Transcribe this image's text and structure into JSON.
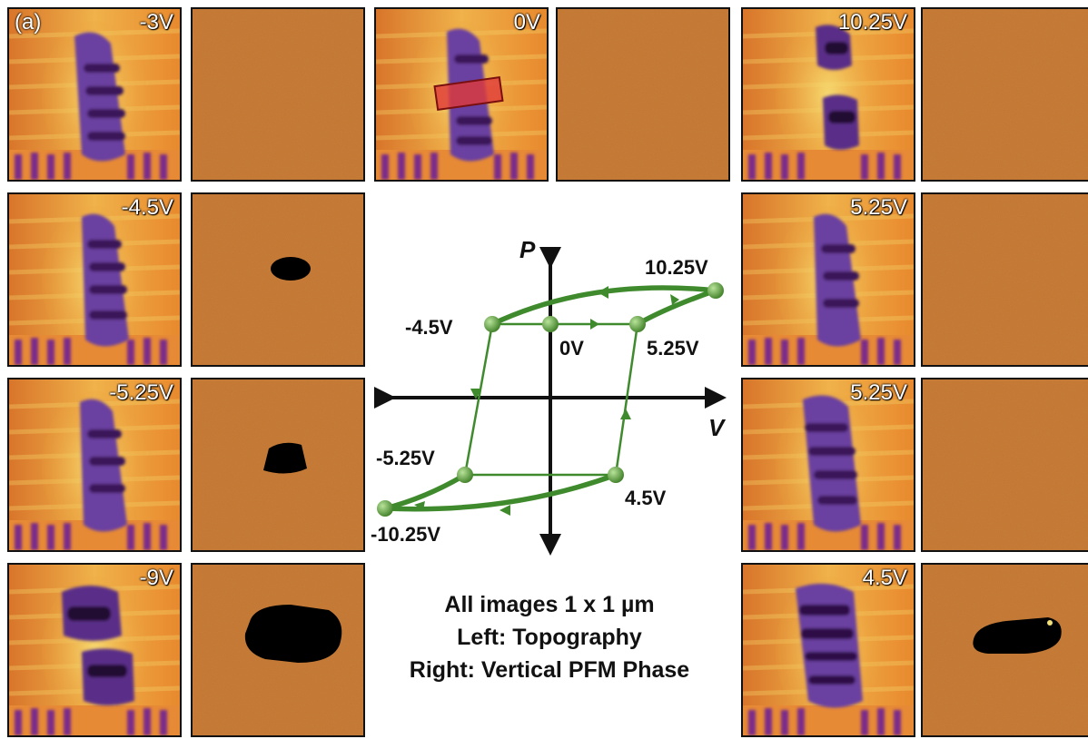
{
  "panel_label": "(a)",
  "topography_panels": [
    {
      "label": "-3V"
    },
    {
      "label": "0V"
    },
    {
      "label": "10.25V"
    },
    {
      "label": "-4.5V"
    },
    {
      "label": "5.25V"
    },
    {
      "label": "-5.25V"
    },
    {
      "label": "5.25V"
    },
    {
      "label": "-9V"
    },
    {
      "label": "4.5V"
    }
  ],
  "loop": {
    "axis_p": "P",
    "axis_v": "V",
    "points": {
      "v0": "0V",
      "v_m45": "-4.5V",
      "v_p525": "5.25V",
      "v_p1025": "10.25V",
      "v_m525": "-5.25V",
      "v_p45": "4.5V",
      "v_m1025": "-10.25V"
    },
    "colors": {
      "path": "#3f8a2c",
      "dot": "#5aa33c",
      "axis": "#111111"
    }
  },
  "caption": {
    "line1": "All images 1 x 1 µm",
    "line2": "Left: Topography",
    "line3": "Right: Vertical PFM Phase"
  },
  "colors": {
    "topo_bright": "#f6e27a",
    "topo_mid": "#e58a2e",
    "topo_dark": "#3a1a5a",
    "phase_bg": "#c4742d",
    "phase_domain": "#000000"
  }
}
